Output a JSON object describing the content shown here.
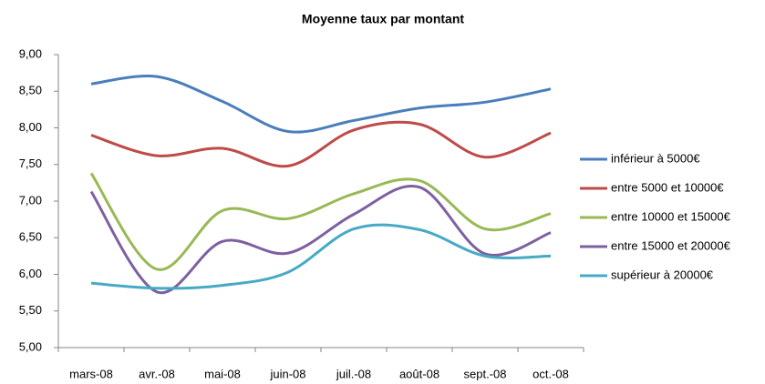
{
  "chart_data": {
    "type": "line",
    "title": "Moyenne taux par montant",
    "categories": [
      "mars-08",
      "avr.-08",
      "mai-08",
      "juin-08",
      "juil.-08",
      "août-08",
      "sept.-08",
      "oct.-08"
    ],
    "series": [
      {
        "name": "inférieur à 5000€",
        "color": "#4a7ebb",
        "values": [
          8.6,
          8.7,
          8.36,
          7.95,
          8.1,
          8.27,
          8.35,
          8.53
        ]
      },
      {
        "name": "entre 5000 et 10000€",
        "color": "#be4b48",
        "values": [
          7.9,
          7.62,
          7.72,
          7.48,
          7.97,
          8.05,
          7.6,
          7.93
        ]
      },
      {
        "name": "entre 10000 et 15000€",
        "color": "#98b954",
        "values": [
          7.38,
          6.07,
          6.87,
          6.76,
          7.1,
          7.28,
          6.62,
          6.83
        ]
      },
      {
        "name": "entre 15000 et 20000€",
        "color": "#7d60a0",
        "values": [
          7.13,
          5.76,
          6.45,
          6.29,
          6.82,
          7.19,
          6.28,
          6.57
        ]
      },
      {
        "name": "supérieur à 20000€",
        "color": "#46aac5",
        "values": [
          5.88,
          5.81,
          5.85,
          6.03,
          6.62,
          6.61,
          6.25,
          6.25
        ]
      }
    ],
    "ylim": [
      5,
      9
    ],
    "yticks": [
      {
        "value": 5,
        "label": "5,00"
      },
      {
        "value": 5.5,
        "label": "5,50"
      },
      {
        "value": 6,
        "label": "6,00"
      },
      {
        "value": 6.5,
        "label": "6,50"
      },
      {
        "value": 7,
        "label": "7,00"
      },
      {
        "value": 7.5,
        "label": "7,50"
      },
      {
        "value": 8,
        "label": "8,00"
      },
      {
        "value": 8.5,
        "label": "8,50"
      },
      {
        "value": 9,
        "label": "9,00"
      }
    ],
    "grid": false,
    "smooth": true,
    "legend": "right"
  }
}
